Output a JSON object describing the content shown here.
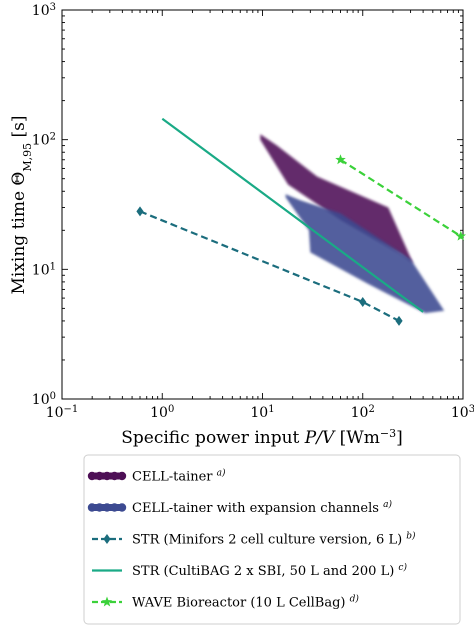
{
  "chart_data": {
    "type": "line",
    "xlabel": {
      "main": "Specific power input ",
      "var": "P/V",
      "unit": " [Wm",
      "unit_exp": "−3",
      "unit_end": "]"
    },
    "ylabel": {
      "main": "Mixing time ",
      "sym": "Θ",
      "sub": "M,95",
      "unit": " [s]"
    },
    "xscale": "log",
    "yscale": "log",
    "xlim": [
      0.1,
      1000
    ],
    "ylim": [
      1,
      1000
    ],
    "x_ticks": [
      {
        "value": 0.1,
        "base": "10",
        "exp": "−1"
      },
      {
        "value": 1,
        "base": "10",
        "exp": "0"
      },
      {
        "value": 10,
        "base": "10",
        "exp": "1"
      },
      {
        "value": 100,
        "base": "10",
        "exp": "2"
      },
      {
        "value": 1000,
        "base": "10",
        "exp": "3"
      }
    ],
    "y_ticks": [
      {
        "value": 1,
        "base": "10",
        "exp": "0"
      },
      {
        "value": 10,
        "base": "10",
        "exp": "1"
      },
      {
        "value": 100,
        "base": "10",
        "exp": "2"
      },
      {
        "value": 1000,
        "base": "10",
        "exp": "3"
      }
    ],
    "grid": false,
    "legend_position": "below",
    "series": [
      {
        "name": "CELL-tainer",
        "note": "a)",
        "kind": "band",
        "color": "#4d0f55",
        "polygon": [
          [
            9.5,
            110
          ],
          [
            14,
            90
          ],
          [
            35,
            52
          ],
          [
            180,
            30
          ],
          [
            320,
            11
          ],
          [
            240,
            13
          ],
          [
            60,
            24
          ],
          [
            18,
            45
          ],
          [
            9.5,
            100
          ]
        ]
      },
      {
        "name": "CELL-tainer with expansion channels",
        "note": "a)",
        "kind": "band",
        "color": "#3c4a91",
        "polygon": [
          [
            17,
            38
          ],
          [
            24,
            34
          ],
          [
            60,
            27
          ],
          [
            300,
            12
          ],
          [
            650,
            4.8
          ],
          [
            420,
            4.6
          ],
          [
            110,
            7.8
          ],
          [
            30,
            13.5
          ],
          [
            29,
            20
          ],
          [
            17,
            36
          ]
        ]
      },
      {
        "name": "STR (Minifors 2 cell culture version, 6 L)",
        "note": "b)",
        "kind": "dashed-marker",
        "marker": "diamond",
        "color": "#1b6d7d",
        "x": [
          0.6,
          100,
          230
        ],
        "y": [
          28,
          5.6,
          4
        ]
      },
      {
        "name": "STR (CultiBAG 2 x SBI, 50 L and 200 L)",
        "note": "c)",
        "kind": "solid",
        "color": "#1aaa86",
        "x": [
          1,
          400
        ],
        "y": [
          145,
          4.7
        ]
      },
      {
        "name": "WAVE Bioreactor (10 L CellBag)",
        "note": "d)",
        "kind": "dashed-marker",
        "marker": "star",
        "color": "#3bd13a",
        "x": [
          60,
          950
        ],
        "y": [
          70,
          18
        ]
      }
    ]
  }
}
